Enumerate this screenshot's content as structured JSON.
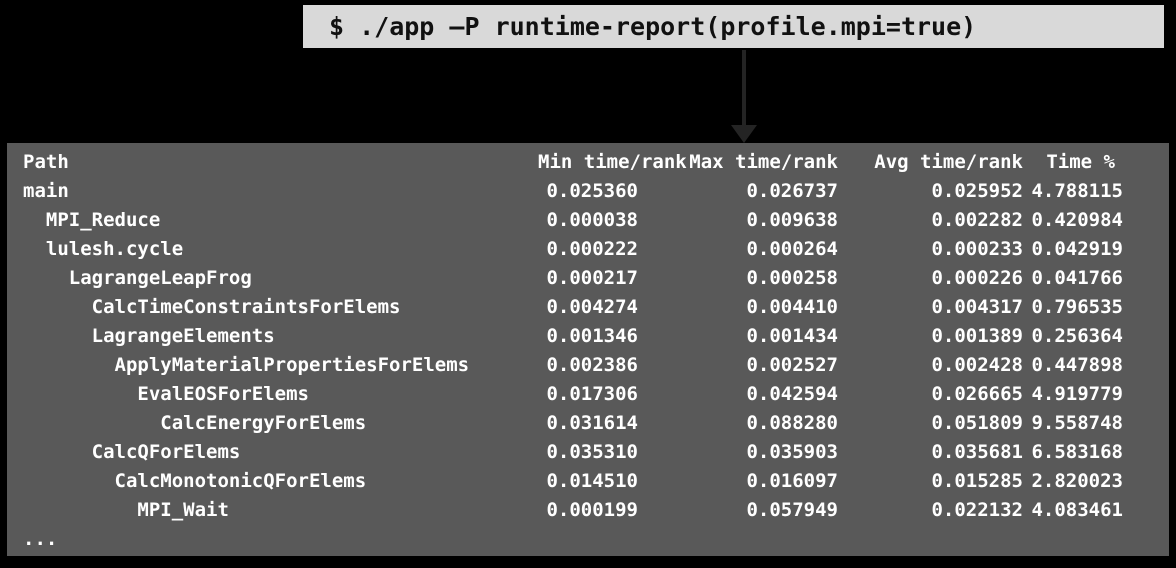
{
  "colors": {
    "canvas_bg": "#000000",
    "command_box_bg": "#d9d9d9",
    "command_text": "#111111",
    "arrow": "#242424",
    "terminal_bg": "#595959",
    "terminal_text": "#ffffff"
  },
  "command": {
    "text": "$ ./app –P runtime-report(profile.mpi=true)"
  },
  "report": {
    "headers": {
      "path": "Path",
      "min": "Min time/rank",
      "max": "Max time/rank",
      "avg": "Avg time/rank",
      "pct": "Time %"
    },
    "rows": [
      {
        "path": "main",
        "level": 0,
        "min": "0.025360",
        "max": "0.026737",
        "avg": "0.025952",
        "pct": "4.788115"
      },
      {
        "path": "MPI_Reduce",
        "level": 1,
        "min": "0.000038",
        "max": "0.009638",
        "avg": "0.002282",
        "pct": "0.420984"
      },
      {
        "path": "lulesh.cycle",
        "level": 1,
        "min": "0.000222",
        "max": "0.000264",
        "avg": "0.000233",
        "pct": "0.042919"
      },
      {
        "path": "LagrangeLeapFrog",
        "level": 2,
        "min": "0.000217",
        "max": "0.000258",
        "avg": "0.000226",
        "pct": "0.041766"
      },
      {
        "path": "CalcTimeConstraintsForElems",
        "level": 3,
        "min": "0.004274",
        "max": "0.004410",
        "avg": "0.004317",
        "pct": "0.796535"
      },
      {
        "path": "LagrangeElements",
        "level": 3,
        "min": "0.001346",
        "max": "0.001434",
        "avg": "0.001389",
        "pct": "0.256364"
      },
      {
        "path": "ApplyMaterialPropertiesForElems",
        "level": 4,
        "min": "0.002386",
        "max": "0.002527",
        "avg": "0.002428",
        "pct": "0.447898"
      },
      {
        "path": "EvalEOSForElems",
        "level": 5,
        "min": "0.017306",
        "max": "0.042594",
        "avg": "0.026665",
        "pct": "4.919779"
      },
      {
        "path": "CalcEnergyForElems",
        "level": 6,
        "min": "0.031614",
        "max": "0.088280",
        "avg": "0.051809",
        "pct": "9.558748"
      },
      {
        "path": "CalcQForElems",
        "level": 3,
        "min": "0.035310",
        "max": "0.035903",
        "avg": "0.035681",
        "pct": "6.583168"
      },
      {
        "path": "CalcMonotonicQForElems",
        "level": 4,
        "min": "0.014510",
        "max": "0.016097",
        "avg": "0.015285",
        "pct": "2.820023"
      },
      {
        "path": "MPI_Wait",
        "level": 5,
        "min": "0.000199",
        "max": "0.057949",
        "avg": "0.022132",
        "pct": "4.083461"
      }
    ],
    "ellipsis": "...",
    "indent_spaces_per_level": 2
  }
}
